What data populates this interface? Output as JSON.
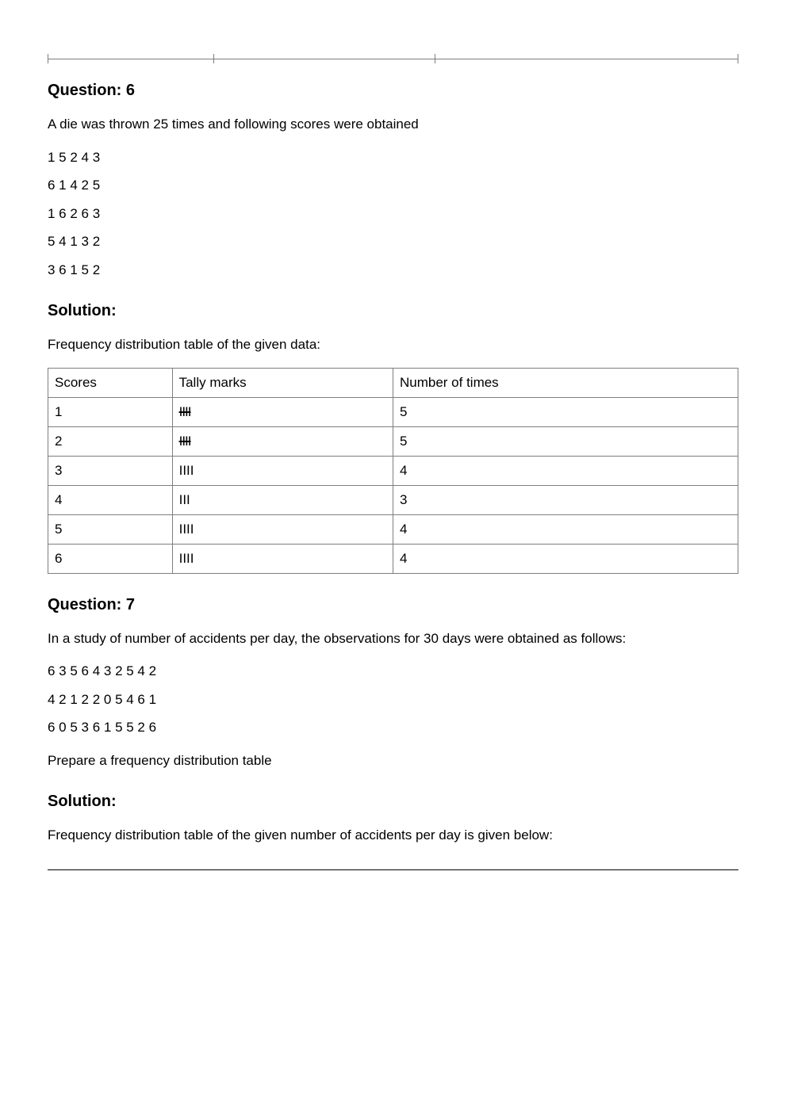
{
  "q6": {
    "heading": "Question: 6",
    "intro": "A die was thrown 25 times and following scores were obtained",
    "data_lines": [
      "1 5 2 4 3",
      "6 1 4 2 5",
      "1 6 2 6 3",
      "5 4 1 3 2",
      "3 6 1 5 2"
    ],
    "solution_heading": "Solution:",
    "solution_intro": "Frequency distribution table of the given data:",
    "table": {
      "headers": [
        "Scores",
        "Tally marks",
        "Number of times"
      ],
      "col_widths": [
        "18%",
        "32%",
        "50%"
      ],
      "rows": [
        {
          "score": "1",
          "tally": "IIII",
          "tally_strike": true,
          "count": "5"
        },
        {
          "score": "2",
          "tally": "IIII",
          "tally_strike": true,
          "count": "5"
        },
        {
          "score": "3",
          "tally": "IIII",
          "tally_strike": false,
          "count": "4"
        },
        {
          "score": "4",
          "tally": "III",
          "tally_strike": false,
          "count": "3"
        },
        {
          "score": "5",
          "tally": "IIII",
          "tally_strike": false,
          "count": "4"
        },
        {
          "score": "6",
          "tally": "IIII",
          "tally_strike": false,
          "count": "4"
        }
      ]
    }
  },
  "q7": {
    "heading": "Question: 7",
    "intro": "In a study of number of accidents per day, the observations for 30 days were obtained as follows:",
    "data_lines": [
      "6 3 5 6 4 3 2 5 4 2",
      "4 2 1 2 2 0 5 4 6 1",
      "6 0 5 3 6 1 5 5 2 6"
    ],
    "instr": "Prepare a frequency distribution table",
    "solution_heading": "Solution:",
    "solution_intro": "Frequency distribution table of the given number of accidents per day is given below:"
  }
}
